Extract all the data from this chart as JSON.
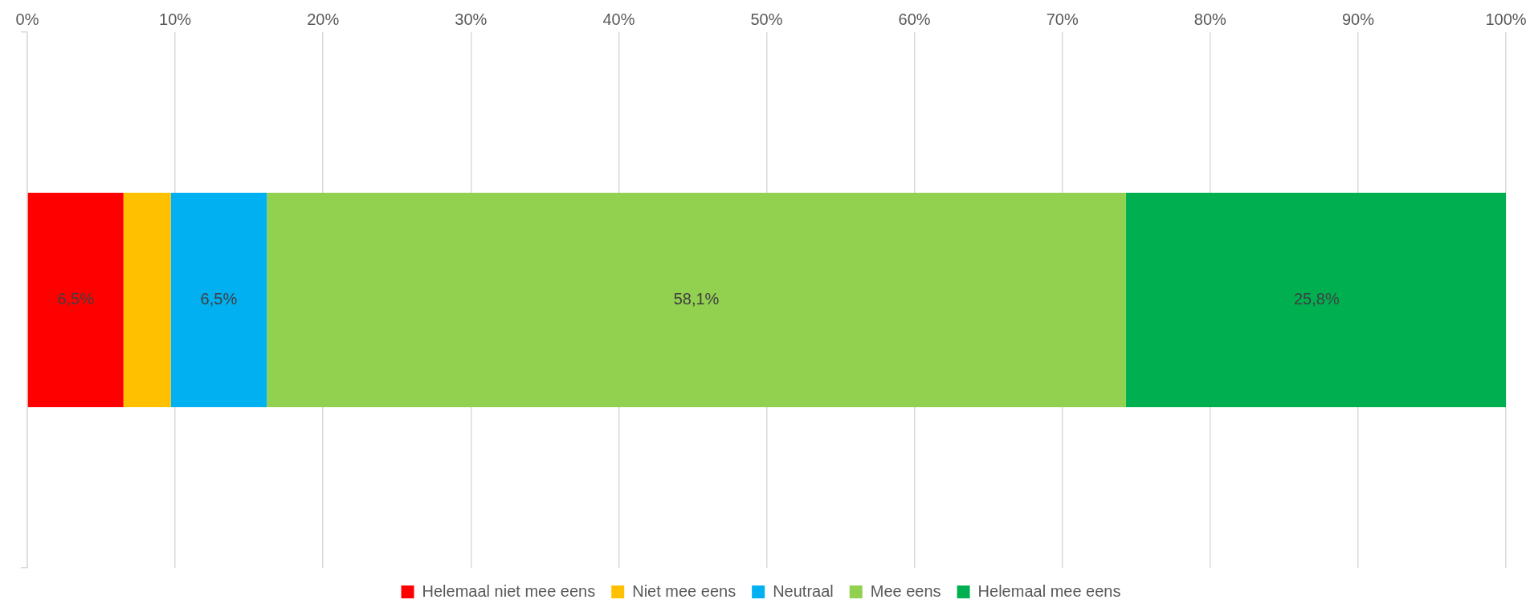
{
  "chart_data": {
    "type": "bar",
    "orientation": "horizontal",
    "stacked": true,
    "categories": [
      null
    ],
    "series": [
      {
        "name": "Helemaal niet mee eens",
        "color": "#ff0000",
        "values": [
          6.5
        ],
        "value_labels": [
          "6,5%"
        ]
      },
      {
        "name": "Niet mee eens",
        "color": "#ffc000",
        "values": [
          3.2
        ],
        "value_labels": [
          null
        ]
      },
      {
        "name": "Neutraal",
        "color": "#00b0f0",
        "values": [
          6.5
        ],
        "value_labels": [
          "6,5%"
        ]
      },
      {
        "name": "Mee eens",
        "color": "#92d050",
        "values": [
          58.1
        ],
        "value_labels": [
          "58,1%"
        ]
      },
      {
        "name": "Helemaal mee eens",
        "color": "#00b050",
        "values": [
          25.8
        ],
        "value_labels": [
          "25,8%"
        ]
      }
    ],
    "xlim": [
      0,
      100
    ],
    "xticks": [
      {
        "value": 0,
        "label": "0%"
      },
      {
        "value": 10,
        "label": "10%"
      },
      {
        "value": 20,
        "label": "20%"
      },
      {
        "value": 30,
        "label": "30%"
      },
      {
        "value": 40,
        "label": "40%"
      },
      {
        "value": 50,
        "label": "50%"
      },
      {
        "value": 60,
        "label": "60%"
      },
      {
        "value": 70,
        "label": "70%"
      },
      {
        "value": 80,
        "label": "80%"
      },
      {
        "value": 90,
        "label": "90%"
      },
      {
        "value": 100,
        "label": "100%"
      }
    ],
    "grid": "x",
    "legend": "bottom"
  }
}
